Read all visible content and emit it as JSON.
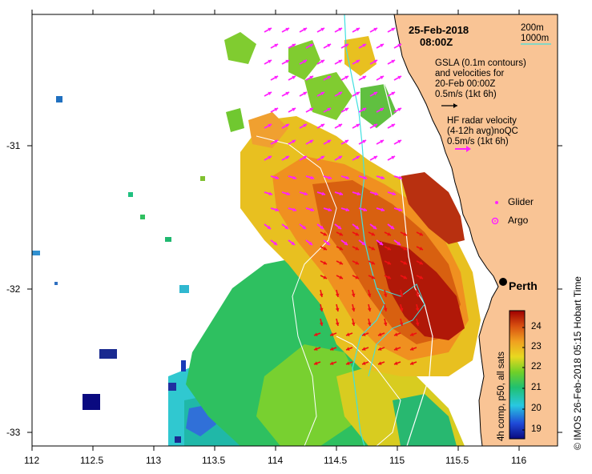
{
  "map": {
    "date": "25-Feb-2018",
    "time": "08:00Z",
    "depth_200": "200m",
    "depth_1000": "1000m",
    "gsla_lines": [
      "GSLA (0.1m contours)",
      "and velocities for",
      "20-Feb 00:00Z",
      "0.5m/s (1kt 6h)"
    ],
    "hf_lines": [
      "HF radar velocity",
      "(4-12h avg)noQC",
      "0.5m/s (1kt 6h)"
    ],
    "legend_glider": "Glider",
    "legend_argo": "Argo",
    "city": "Perth",
    "colorbar_label": "4h comp, p50, all sats",
    "colorbar_ticks": [
      "24",
      "23",
      "22",
      "21",
      "20",
      "19"
    ],
    "credit": "© IMOS 26-Feb-2018 05:15 Hobart Time",
    "x_ticks": [
      "112",
      "112.5",
      "113",
      "113.5",
      "114",
      "114.5",
      "115",
      "115.5",
      "116"
    ],
    "y_ticks": [
      "-31",
      "-32",
      "-33"
    ],
    "colors": {
      "land": "#f9c495",
      "contour_200": "#ffffff",
      "contour_1000": "#40e0e0",
      "hf_arrows": "#ff22ff",
      "gsla_arrows": "#ee1111",
      "perth_marker": "#000000"
    }
  }
}
